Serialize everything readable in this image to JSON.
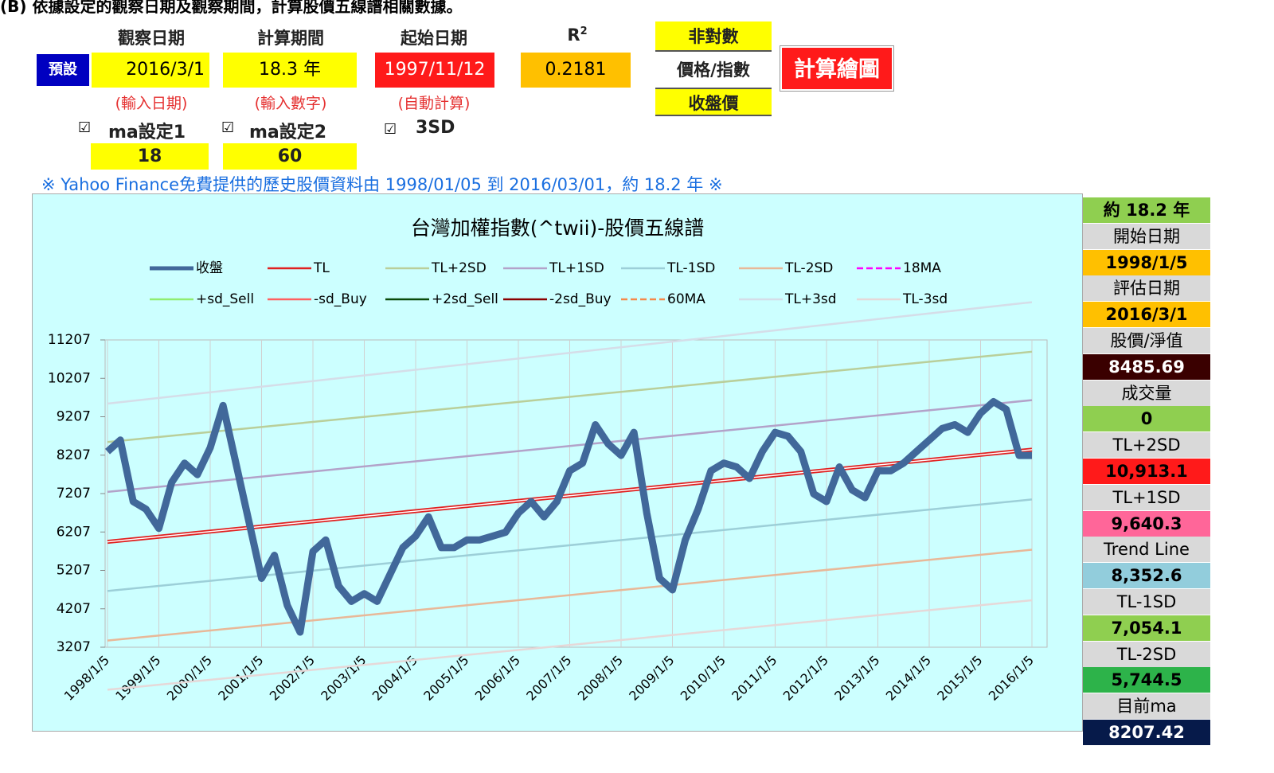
{
  "header": {
    "title": "(B) 依據設定的觀察日期及觀察期間，計算股價五線譜相關數據。"
  },
  "form": {
    "col_labels": [
      "觀察日期",
      "計算期間",
      "起始日期"
    ],
    "r2": {
      "base": "R",
      "sup": "2"
    },
    "preset_button": "預設",
    "observe_date": "2016/3/1",
    "period": "18.3 年",
    "start_date": "1997/11/12",
    "r2_value": "0.2181",
    "mode_options": [
      "非對數",
      "價格/指數",
      "收盤價"
    ],
    "calc_button": "計算繪圖",
    "hints": [
      "(輸入日期)",
      "(輸入數字)",
      "(自動計算)"
    ],
    "checkboxes": [
      {
        "checked": "☑",
        "label": "ma設定1",
        "value": "18"
      },
      {
        "checked": "☑",
        "label": "ma設定2",
        "value": "60"
      },
      {
        "checked": "☑",
        "label": "3SD"
      }
    ],
    "note": "※ Yahoo Finance免費提供的歷史股價資料由 1998/01/05 到 2016/03/01，約 18.2 年 ※"
  },
  "chart_data": {
    "type": "line",
    "title": "台灣加權指數(^twii)-股價五線譜",
    "categories": [
      "1998/1/5",
      null,
      null,
      null,
      "1999/1/5",
      null,
      null,
      null,
      "2000/1/5",
      null,
      null,
      null,
      "2001/1/5",
      null,
      null,
      null,
      "2002/1/5",
      null,
      null,
      null,
      "2003/1/5",
      null,
      null,
      null,
      "2004/1/5",
      null,
      null,
      null,
      "2005/1/5",
      null,
      null,
      null,
      "2006/1/5",
      null,
      null,
      null,
      "2007/1/5",
      null,
      null,
      null,
      "2008/1/5",
      null,
      null,
      null,
      "2009/1/5",
      null,
      null,
      null,
      "2010/1/5",
      null,
      null,
      null,
      "2011/1/5",
      null,
      null,
      null,
      "2012/1/5",
      null,
      null,
      null,
      "2013/1/5",
      null,
      null,
      null,
      "2014/1/5",
      null,
      null,
      null,
      "2015/1/5",
      null,
      null,
      null,
      "2016/1/5"
    ],
    "series": [
      {
        "name": "收盤",
        "color": "#41689a",
        "values": [
          8300,
          8600,
          7000,
          6800,
          6300,
          7500,
          8000,
          7700,
          8400,
          9500,
          8000,
          6500,
          5000,
          5600,
          4300,
          3600,
          5700,
          6000,
          4800,
          4400,
          4600,
          4400,
          5100,
          5800,
          6100,
          6600,
          5800,
          5800,
          6000,
          6000,
          6100,
          6200,
          6700,
          7000,
          6600,
          7000,
          7800,
          8000,
          9000,
          8500,
          8200,
          8800,
          6700,
          5000,
          4700,
          6000,
          6800,
          7800,
          8000,
          7900,
          7600,
          8300,
          8800,
          8700,
          8300,
          7200,
          7000,
          7900,
          7300,
          7100,
          7800,
          7800,
          8000,
          8300,
          8600,
          8900,
          9000,
          8800,
          9300,
          9600,
          9400,
          8200,
          8200
        ]
      }
    ],
    "trend_lines": [
      {
        "name": "TL",
        "color": "#e02020",
        "start": 5950,
        "end": 8350
      },
      {
        "name": "TL+2SD",
        "color": "#b9cf9a",
        "start": 8550,
        "end": 10900
      },
      {
        "name": "TL+1SD",
        "color": "#b3a2c9",
        "start": 7250,
        "end": 9640
      },
      {
        "name": "TL-1SD",
        "color": "#9ccfd8",
        "start": 4670,
        "end": 7054
      },
      {
        "name": "TL-2SD",
        "color": "#e8b898",
        "start": 3380,
        "end": 5745
      },
      {
        "name": "TL+3sd",
        "color": "#d5dde8",
        "start": 9550,
        "end": 12190
      },
      {
        "name": "TL-3sd",
        "color": "#e6d8d8",
        "start": 2100,
        "end": 4430
      }
    ],
    "other_legend": [
      {
        "name": "18MA",
        "color": "#ff00ff",
        "dash": true
      },
      {
        "name": "+sd_Sell",
        "color": "#90ee70"
      },
      {
        "name": "-sd_Buy",
        "color": "#ff6060"
      },
      {
        "name": "+2sd_Sell",
        "color": "#0a4a0a"
      },
      {
        "name": "-2sd_Buy",
        "color": "#8b0000"
      },
      {
        "name": "60MA",
        "color": "#f5894a",
        "dash": true
      }
    ],
    "ylim": [
      3207,
      11207
    ],
    "yticks": [
      3207,
      4207,
      5207,
      6207,
      7207,
      8207,
      9207,
      10207,
      11207
    ],
    "grid": true
  },
  "side_panel": [
    {
      "text": "約 18.2 年",
      "bg": "#8fcf50",
      "color": "#000"
    },
    {
      "text": "開始日期",
      "bg": "#d9d9d9",
      "color": "#000"
    },
    {
      "text": "1998/1/5",
      "bg": "#ffc000",
      "color": "#000"
    },
    {
      "text": "評估日期",
      "bg": "#d9d9d9",
      "color": "#000"
    },
    {
      "text": "2016/3/1",
      "bg": "#ffc000",
      "color": "#000"
    },
    {
      "text": "股價/淨值",
      "bg": "#d9d9d9",
      "color": "#000"
    },
    {
      "text": "8485.69",
      "bg": "#3a0000",
      "color": "#fff"
    },
    {
      "text": "成交量",
      "bg": "#d9d9d9",
      "color": "#000"
    },
    {
      "text": "0",
      "bg": "#8fcf50",
      "color": "#000"
    },
    {
      "text": "TL+2SD",
      "bg": "#d9d9d9",
      "color": "#000"
    },
    {
      "text": "10,913.1",
      "bg": "#ff1a1a",
      "color": "#000"
    },
    {
      "text": "TL+1SD",
      "bg": "#d9d9d9",
      "color": "#000"
    },
    {
      "text": "9,640.3",
      "bg": "#ff6699",
      "color": "#000"
    },
    {
      "text": "Trend Line",
      "bg": "#d9d9d9",
      "color": "#000"
    },
    {
      "text": "8,352.6",
      "bg": "#92cddc",
      "color": "#000"
    },
    {
      "text": "TL-1SD",
      "bg": "#d9d9d9",
      "color": "#000"
    },
    {
      "text": "7,054.1",
      "bg": "#8fcf50",
      "color": "#000"
    },
    {
      "text": "TL-2SD",
      "bg": "#d9d9d9",
      "color": "#000"
    },
    {
      "text": "5,744.5",
      "bg": "#2db34a",
      "color": "#000"
    },
    {
      "text": "目前ma",
      "bg": "#d9d9d9",
      "color": "#000"
    },
    {
      "text": "8207.42",
      "bg": "#061a4a",
      "color": "#fff"
    }
  ]
}
